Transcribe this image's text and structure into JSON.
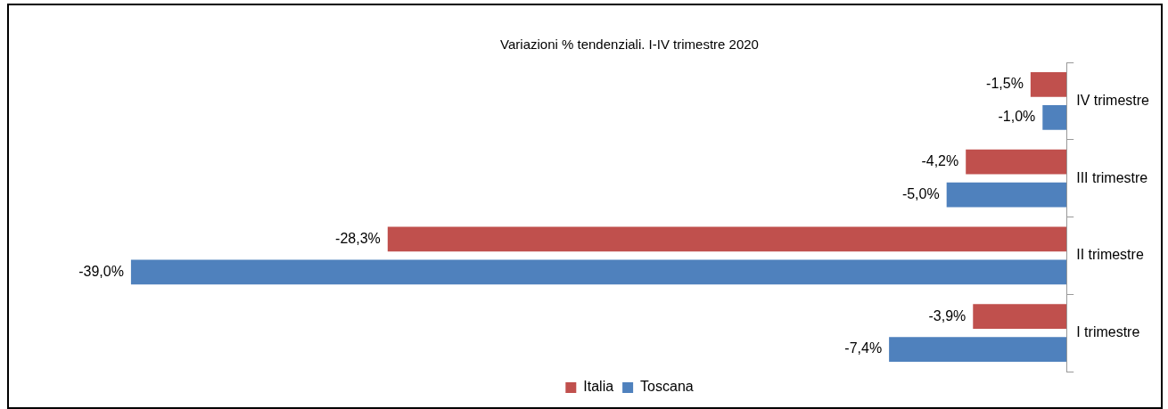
{
  "chart_data": {
    "type": "bar",
    "orientation": "horizontal",
    "title": "Variazioni % tendenziali. I-IV trimestre 2020",
    "categories": [
      "IV trimestre",
      "III trimestre",
      "II trimestre",
      "I trimestre"
    ],
    "series": [
      {
        "name": "Italia",
        "color": "#c0504d",
        "values": [
          -1.5,
          -4.2,
          -28.3,
          -3.9
        ],
        "value_labels": [
          "-1,5%",
          "-4,2%",
          "-28,3%",
          "-3,9%"
        ]
      },
      {
        "name": "Toscana",
        "color": "#4f81bd",
        "values": [
          -1.0,
          -5.0,
          -39.0,
          -7.4
        ],
        "value_labels": [
          "-1,0%",
          "-5,0%",
          "-39,0%",
          "-7,4%"
        ]
      }
    ],
    "tick_labels": "y",
    "grid": false,
    "legend": "bottom"
  }
}
